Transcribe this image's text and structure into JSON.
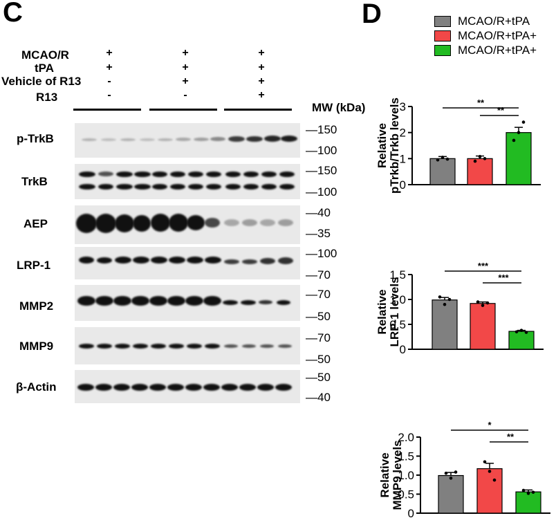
{
  "panels": {
    "C": "C",
    "D": "D"
  },
  "conditions": [
    {
      "label": "MCAO/R",
      "signs": [
        "+",
        "+",
        "+"
      ]
    },
    {
      "label": "tPA",
      "signs": [
        "+",
        "+",
        "+"
      ]
    },
    {
      "label": "Vehicle of R13",
      "signs": [
        "-",
        "+",
        "+"
      ]
    },
    {
      "label": "R13",
      "signs": [
        "-",
        "-",
        "+"
      ]
    }
  ],
  "mw_title": "MW (kDa)",
  "blots": [
    {
      "label": "p-TrkB",
      "markers": [
        "150",
        "100"
      ]
    },
    {
      "label": "TrkB",
      "markers": [
        "150",
        "100"
      ]
    },
    {
      "label": "AEP",
      "markers": [
        "40",
        "35"
      ]
    },
    {
      "label": "LRP-1",
      "markers": [
        "100",
        "70"
      ]
    },
    {
      "label": "MMP2",
      "markers": [
        "70",
        "50"
      ]
    },
    {
      "label": "MMP9",
      "markers": [
        "70",
        "50"
      ]
    },
    {
      "label": "β-Actin",
      "markers": [
        "50",
        "40"
      ]
    }
  ],
  "legend": [
    {
      "label": "MCAO/R+tPA",
      "color": "#808080"
    },
    {
      "label": "MCAO/R+tPA+",
      "color": "#f24848"
    },
    {
      "label": "MCAO/R+tPA+",
      "color": "#22bb22"
    }
  ],
  "chart_data": [
    {
      "type": "bar",
      "ylabel": [
        "Relative",
        "pTrkb/Trkb levels"
      ],
      "ylim": [
        0,
        3
      ],
      "yticks": [
        "0",
        "1",
        "2",
        "3"
      ],
      "values": [
        1.0,
        1.0,
        2.0
      ],
      "errors": [
        0.08,
        0.1,
        0.2
      ],
      "points": [
        [
          0.95,
          1.05,
          0.98
        ],
        [
          0.9,
          1.08,
          1.0
        ],
        [
          1.7,
          2.0,
          2.4
        ]
      ],
      "colors": [
        "#808080",
        "#f24848",
        "#22bb22"
      ],
      "significance": [
        {
          "from": 0,
          "to": 2,
          "label": "**"
        },
        {
          "from": 1,
          "to": 2,
          "label": "**"
        }
      ]
    },
    {
      "type": "bar",
      "ylabel": [
        "Relative",
        "LRP-1 levels"
      ],
      "ylim": [
        0,
        1.5
      ],
      "yticks": [
        "0",
        "0.5",
        "1.0",
        "1.5"
      ],
      "values": [
        0.99,
        0.92,
        0.36
      ],
      "errors": [
        0.05,
        0.03,
        0.02
      ],
      "points": [
        [
          1.05,
          0.9,
          1.0
        ],
        [
          0.95,
          0.88,
          0.93
        ],
        [
          0.35,
          0.38,
          0.34
        ]
      ],
      "colors": [
        "#808080",
        "#f24848",
        "#22bb22"
      ],
      "significance": [
        {
          "from": 0,
          "to": 2,
          "label": "***"
        },
        {
          "from": 1,
          "to": 2,
          "label": "***"
        }
      ]
    },
    {
      "type": "bar",
      "ylabel": [
        "Relative",
        "MMP9 levels"
      ],
      "ylim": [
        0,
        2.0
      ],
      "yticks": [
        "0",
        "0.5",
        "1.0",
        "1.5",
        "2.0"
      ],
      "values": [
        0.99,
        1.17,
        0.56
      ],
      "errors": [
        0.08,
        0.14,
        0.05
      ],
      "points": [
        [
          1.05,
          0.92,
          1.08
        ],
        [
          1.35,
          1.1,
          0.87
        ],
        [
          0.6,
          0.52,
          0.55
        ]
      ],
      "colors": [
        "#808080",
        "#f24848",
        "#22bb22"
      ],
      "significance": [
        {
          "from": 0,
          "to": 2,
          "label": "*"
        },
        {
          "from": 1,
          "to": 2,
          "label": "**"
        }
      ]
    }
  ]
}
